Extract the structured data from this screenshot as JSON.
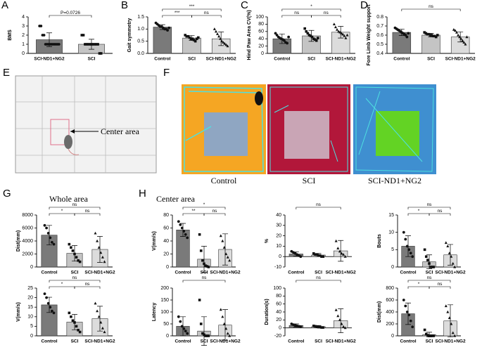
{
  "panel_e": {
    "label": "E",
    "annotation": "Center area"
  },
  "panel_f": {
    "label": "F",
    "captions": [
      "Control",
      "SCI",
      "SCI-ND1+NG2"
    ]
  },
  "panel_g": {
    "label": "G",
    "title": "Whole area"
  },
  "panel_h": {
    "label": "H",
    "title": "Center area"
  },
  "chart_data": [
    {
      "type": "bar",
      "label": "A",
      "ylabel": "BMS",
      "categories": [
        "SCI-ND1+NG2",
        "SCI"
      ],
      "colors": [
        "#7a7a7a",
        "#c4c4c4"
      ],
      "values": [
        1.5,
        1.0
      ],
      "errors": [
        0.75,
        0.55
      ],
      "points": [
        [
          3,
          3,
          2,
          2,
          1,
          1,
          1,
          1,
          1,
          1,
          1,
          1,
          1,
          1
        ],
        [
          2,
          2,
          1,
          1,
          1,
          1,
          1,
          1,
          1,
          1,
          1,
          0,
          0
        ]
      ],
      "ylim": [
        0,
        4
      ],
      "yticks": [
        0,
        1,
        2,
        3,
        4
      ],
      "comparisons": [
        {
          "pair": [
            0,
            1
          ],
          "text": "P=0.0726"
        }
      ]
    },
    {
      "type": "bar",
      "label": "B",
      "ylabel": "Gait symmetry",
      "categories": [
        "Control",
        "SCI",
        "SCI-ND1+NG2"
      ],
      "colors": [
        "#7a7a7a",
        "#c4c4c4",
        "#dcdcdc"
      ],
      "values": [
        1.08,
        0.63,
        0.6
      ],
      "errors": [
        0.1,
        0.1,
        0.28
      ],
      "points": [
        [
          1.25,
          1.2,
          1.15,
          1.1,
          1.1,
          1.05,
          1.0,
          1.0,
          0.95,
          1.05
        ],
        [
          0.75,
          0.7,
          0.7,
          0.65,
          0.6,
          0.6,
          0.55,
          0.5,
          0.6,
          0.65
        ],
        [
          1.0,
          0.9,
          0.8,
          0.7,
          0.6,
          0.5,
          0.45,
          0.4,
          0.35,
          0.3
        ]
      ],
      "ylim": [
        0,
        1.5
      ],
      "yticks": [
        {
          "value": 0,
          "label": "0.0"
        },
        {
          "value": 0.5,
          "label": "0.5"
        },
        {
          "value": 1,
          "label": "1.0"
        },
        {
          "value": 1.5,
          "label": "1.5"
        }
      ],
      "comparisons": [
        {
          "pair": [
            0,
            2
          ],
          "text": "***"
        },
        {
          "pair": [
            0,
            1
          ],
          "text": "***"
        },
        {
          "pair": [
            1,
            2
          ],
          "text": "ns"
        }
      ]
    },
    {
      "type": "bar",
      "label": "C",
      "ylabel": "Hind Paw Area  CV(%)",
      "categories": [
        "Control",
        "SCI",
        "SCI-ND1+NG2"
      ],
      "colors": [
        "#7a7a7a",
        "#c4c4c4",
        "#dcdcdc"
      ],
      "values": [
        40,
        48,
        58
      ],
      "errors": [
        13,
        15,
        16
      ],
      "points": [
        [
          55,
          50,
          45,
          42,
          40,
          38,
          35,
          30,
          28,
          45
        ],
        [
          68,
          60,
          55,
          50,
          48,
          45,
          40,
          38,
          35,
          42
        ],
        [
          80,
          72,
          65,
          60,
          58,
          55,
          52,
          48,
          42,
          50
        ]
      ],
      "ylim": [
        0,
        100
      ],
      "yticks": [
        0,
        20,
        40,
        60,
        80,
        100
      ],
      "comparisons": [
        {
          "pair": [
            0,
            2
          ],
          "text": "*"
        },
        {
          "pair": [
            0,
            1
          ],
          "text": "ns"
        },
        {
          "pair": [
            1,
            2
          ],
          "text": "ns"
        }
      ]
    },
    {
      "type": "bar",
      "label": "D",
      "ylabel": "Fore Limb Weight support",
      "categories": [
        "Control",
        "SCI",
        "SCI-ND1+NG2"
      ],
      "colors": [
        "#7a7a7a",
        "#c4c4c4",
        "#dcdcdc"
      ],
      "values": [
        0.63,
        0.6,
        0.58
      ],
      "errors": [
        0.035,
        0.02,
        0.055
      ],
      "points": [
        [
          0.68,
          0.67,
          0.66,
          0.65,
          0.64,
          0.63,
          0.62,
          0.61,
          0.6,
          0.58,
          0.62
        ],
        [
          0.63,
          0.62,
          0.61,
          0.61,
          0.6,
          0.6,
          0.59,
          0.59,
          0.58,
          0.6
        ],
        [
          0.66,
          0.65,
          0.63,
          0.6,
          0.58,
          0.56,
          0.54,
          0.52,
          0.5,
          0.58
        ]
      ],
      "ylim": [
        0.4,
        0.8
      ],
      "yticks": [
        0.4,
        0.5,
        0.6,
        0.7,
        0.8
      ],
      "comparisons": [
        {
          "pair": [
            0,
            2
          ],
          "text": "ns"
        }
      ]
    },
    {
      "type": "bar",
      "ylabel": "Dist(mm)",
      "categories": [
        "Control",
        "SCI",
        "SCI-ND1+NG2"
      ],
      "colors": [
        "#7a7a7a",
        "#c4c4c4",
        "#dcdcdc"
      ],
      "values": [
        4900,
        2100,
        2700
      ],
      "errors": [
        1500,
        1200,
        2000
      ],
      "points": [
        [
          6400,
          6000,
          5200,
          4500,
          3800,
          3500
        ],
        [
          3500,
          3000,
          2500,
          2000,
          1500,
          1000,
          800
        ],
        [
          5200,
          4000,
          3000,
          2200,
          1500,
          800
        ]
      ],
      "ylim": [
        0,
        8000
      ],
      "yticks": [
        0,
        2000,
        4000,
        6000,
        8000
      ],
      "comparisons": [
        {
          "pair": [
            0,
            2
          ],
          "text": "ns"
        },
        {
          "pair": [
            0,
            1
          ],
          "text": "*"
        },
        {
          "pair": [
            1,
            2
          ],
          "text": "ns"
        }
      ]
    },
    {
      "type": "bar",
      "ylabel": "V(mm/s)",
      "categories": [
        "Control",
        "SCI",
        "SCI-ND1+NG2"
      ],
      "colors": [
        "#7a7a7a",
        "#c4c4c4",
        "#dcdcdc"
      ],
      "values": [
        16.2,
        7.2,
        9
      ],
      "errors": [
        4,
        4,
        6.5
      ],
      "points": [
        [
          22,
          20,
          17,
          15,
          13,
          12
        ],
        [
          12,
          10,
          8,
          7,
          5,
          3,
          2
        ],
        [
          17,
          13,
          10,
          7,
          4,
          2
        ]
      ],
      "ylim": [
        0,
        25
      ],
      "yticks": [
        0,
        5,
        10,
        15,
        20,
        25
      ],
      "comparisons": [
        {
          "pair": [
            0,
            2
          ],
          "text": "ns"
        },
        {
          "pair": [
            0,
            1
          ],
          "text": "*"
        },
        {
          "pair": [
            1,
            2
          ],
          "text": "ns"
        }
      ]
    },
    {
      "type": "bar",
      "ylabel": "V(mm/s)",
      "categories": [
        "Control",
        "SCI",
        "SCI-ND1+NG2"
      ],
      "colors": [
        "#7a7a7a",
        "#c4c4c4",
        "#dcdcdc"
      ],
      "values": [
        57,
        12,
        27
      ],
      "errors": [
        10,
        20,
        24
      ],
      "points": [
        [
          70,
          65,
          60,
          55,
          50,
          45
        ],
        [
          50,
          25,
          10,
          5,
          2,
          1,
          0
        ],
        [
          48,
          40,
          30,
          20,
          15,
          10
        ]
      ],
      "ylim": [
        0,
        80
      ],
      "yticks": [
        0,
        20,
        40,
        60,
        80
      ],
      "comparisons": [
        {
          "pair": [
            0,
            2
          ],
          "text": "*"
        },
        {
          "pair": [
            0,
            1
          ],
          "text": "**"
        },
        {
          "pair": [
            1,
            2
          ],
          "text": "ns"
        }
      ]
    },
    {
      "type": "bar",
      "ylabel": "%",
      "categories": [
        "Control",
        "SCI",
        "SCI-ND1+NG2"
      ],
      "colors": [
        "#7a7a7a",
        "#c4c4c4",
        "#dcdcdc"
      ],
      "values": [
        2.5,
        1.5,
        5.5
      ],
      "errors": [
        2,
        1.5,
        10
      ],
      "points": [
        [
          5,
          4,
          3,
          2,
          1,
          0
        ],
        [
          3,
          2,
          2,
          1,
          1,
          0,
          0
        ],
        [
          15,
          8,
          5,
          3,
          2,
          0
        ]
      ],
      "ylim": [
        -10,
        40
      ],
      "yticks": [
        -10,
        0,
        10,
        20,
        30,
        40
      ],
      "comparisons": [
        {
          "pair": [
            0,
            2
          ],
          "text": "ns"
        }
      ]
    },
    {
      "type": "bar",
      "ylabel": "Bouts",
      "categories": [
        "Control",
        "SCI",
        "SCI-ND1+NG2"
      ],
      "colors": [
        "#7a7a7a",
        "#c4c4c4",
        "#dcdcdc"
      ],
      "values": [
        6,
        1.5,
        3.5
      ],
      "errors": [
        3,
        2,
        3
      ],
      "points": [
        [
          10,
          8,
          6,
          5,
          4,
          3
        ],
        [
          5,
          3,
          2,
          1,
          0,
          0,
          0
        ],
        [
          7,
          6,
          4,
          3,
          1,
          0
        ]
      ],
      "ylim": [
        0,
        15
      ],
      "yticks": [
        0,
        5,
        10,
        15
      ],
      "comparisons": [
        {
          "pair": [
            0,
            2
          ],
          "text": "ns"
        },
        {
          "pair": [
            0,
            1
          ],
          "text": "*"
        },
        {
          "pair": [
            1,
            2
          ],
          "text": "ns"
        }
      ]
    },
    {
      "type": "bar",
      "ylabel": "Latency",
      "categories": [
        "Control",
        "SCI",
        "SCI-ND1+NG2"
      ],
      "colors": [
        "#7a7a7a",
        "#c4c4c4",
        "#dcdcdc"
      ],
      "values": [
        40,
        20,
        45
      ],
      "errors": [
        40,
        60,
        65
      ],
      "points": [
        [
          80,
          60,
          40,
          30,
          20,
          10
        ],
        [
          150,
          50,
          10,
          5,
          0,
          0,
          0
        ],
        [
          110,
          80,
          50,
          30,
          10,
          0
        ]
      ],
      "ylim": [
        0,
        200
      ],
      "yticks": [
        0,
        50,
        100,
        150,
        200
      ],
      "comparisons": [
        {
          "pair": [
            0,
            2
          ],
          "text": "ns"
        }
      ]
    },
    {
      "type": "bar",
      "ylabel": "Duration(s)",
      "categories": [
        "Control",
        "SCI",
        "SCI-ND1+NG2"
      ],
      "colors": [
        "#7a7a7a",
        "#c4c4c4",
        "#dcdcdc"
      ],
      "values": [
        6,
        3,
        18
      ],
      "errors": [
        4,
        3,
        30
      ],
      "points": [
        [
          10,
          8,
          6,
          5,
          4,
          3
        ],
        [
          5,
          4,
          3,
          2,
          2,
          1,
          1
        ],
        [
          45,
          30,
          20,
          10,
          3,
          0
        ]
      ],
      "ylim": [
        -20,
        100
      ],
      "yticks": [
        -20,
        0,
        20,
        40,
        60,
        80,
        100
      ],
      "comparisons": [
        {
          "pair": [
            0,
            2
          ],
          "text": "ns"
        }
      ]
    },
    {
      "type": "bar",
      "ylabel": "Dist(mm)",
      "categories": [
        "Control",
        "SCI",
        "SCI-ND1+NG2"
      ],
      "colors": [
        "#7a7a7a",
        "#c4c4c4",
        "#dcdcdc"
      ],
      "values": [
        370,
        20,
        250
      ],
      "errors": [
        180,
        40,
        270
      ],
      "points": [
        [
          600,
          500,
          400,
          350,
          250,
          150
        ],
        [
          100,
          30,
          10,
          0,
          0,
          0,
          0
        ],
        [
          500,
          400,
          300,
          200,
          50,
          0
        ]
      ],
      "ylim": [
        0,
        800
      ],
      "yticks": [
        0,
        200,
        400,
        600,
        800
      ],
      "comparisons": [
        {
          "pair": [
            0,
            2
          ],
          "text": "ns"
        },
        {
          "pair": [
            0,
            1
          ],
          "text": "*"
        },
        {
          "pair": [
            1,
            2
          ],
          "text": "ns"
        }
      ]
    }
  ]
}
